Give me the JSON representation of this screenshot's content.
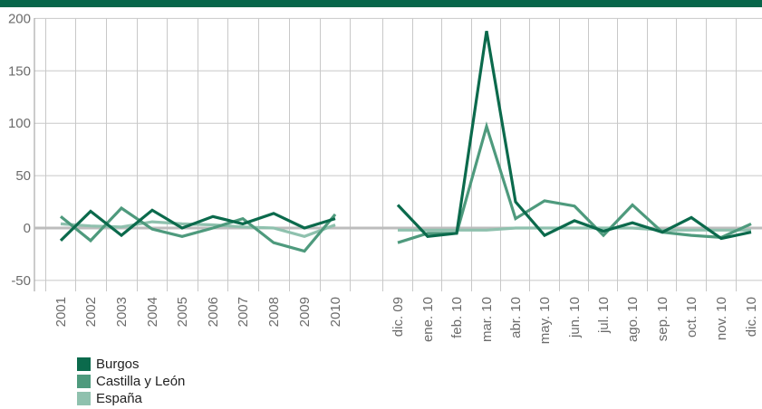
{
  "colors": {
    "topbar": "#07664a",
    "grid": "#c8c8c8",
    "zero": "#bdbdbd",
    "axis": "#999999",
    "burgos": "#0b6a4c",
    "cyl": "#4e9a7d",
    "espana": "#8fc1ae"
  },
  "chart_data": [
    {
      "type": "line",
      "panel": "annual",
      "categories": [
        "2001",
        "2002",
        "2003",
        "2004",
        "2005",
        "2006",
        "2007",
        "2008",
        "2009",
        "2010"
      ],
      "yticks": [
        "200",
        "150",
        "100",
        "50",
        "0",
        "-50"
      ],
      "ylim": [
        -55,
        200
      ],
      "grid": true,
      "legend_placement": "bottom-left",
      "series": [
        {
          "name": "Burgos",
          "color_key": "burgos",
          "values": [
            -12,
            16,
            -7,
            17,
            0,
            11,
            4,
            14,
            0,
            9
          ]
        },
        {
          "name": "Castilla y León",
          "color_key": "cyl",
          "values": [
            11,
            -12,
            19,
            -1,
            -8,
            0,
            9,
            -14,
            -22,
            13
          ]
        },
        {
          "name": "España",
          "color_key": "espana",
          "values": [
            4,
            2,
            1,
            6,
            4,
            3,
            1,
            0,
            -8,
            3
          ]
        }
      ]
    },
    {
      "type": "line",
      "panel": "monthly",
      "categories": [
        "dic. 09",
        "ene. 10",
        "feb. 10",
        "mar. 10",
        "abr. 10",
        "may. 10",
        "jun. 10",
        "jul. 10",
        "ago. 10",
        "sep. 10",
        "oct. 10",
        "nov. 10",
        "dic. 10"
      ],
      "ylim": [
        -55,
        200
      ],
      "grid": true,
      "series": [
        {
          "name": "Burgos",
          "color_key": "burgos",
          "values": [
            22,
            -8,
            -5,
            188,
            25,
            -7,
            7,
            -3,
            5,
            -4,
            10,
            -10,
            -4
          ]
        },
        {
          "name": "Castilla y León",
          "color_key": "cyl",
          "values": [
            -14,
            -5,
            -5,
            97,
            9,
            26,
            21,
            -7,
            22,
            -4,
            -7,
            -9,
            4
          ]
        },
        {
          "name": "España",
          "color_key": "espana",
          "values": [
            -2,
            -2,
            -2,
            -2,
            0,
            0,
            0,
            0,
            0,
            -2,
            -2,
            -2,
            -2
          ]
        }
      ]
    }
  ],
  "legend": [
    {
      "label": "Burgos",
      "color_key": "burgos"
    },
    {
      "label": "Castilla y León",
      "color_key": "cyl"
    },
    {
      "label": "España",
      "color_key": "espana"
    }
  ]
}
